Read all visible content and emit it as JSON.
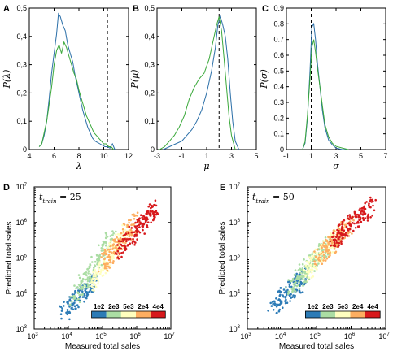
{
  "chart_data": [
    {
      "panel": "A",
      "type": "line",
      "xlabel": "λ",
      "ylabel": "P(λ)",
      "xlim": [
        4,
        12
      ],
      "ylim": [
        0,
        0.5
      ],
      "xticks": [
        "4",
        "6",
        "8",
        "10",
        "12"
      ],
      "yticks": [
        "0",
        "0,1",
        "0,2",
        "0,3",
        "0,4",
        "0,5"
      ],
      "vline": 10.3,
      "colors": {
        "blue": "#2b6fa8",
        "green": "#3aa83a"
      },
      "series": [
        {
          "color": "blue",
          "x": [
            4.8,
            5.0,
            5.2,
            5.4,
            5.6,
            5.8,
            6.0,
            6.2,
            6.35,
            6.5,
            6.7,
            6.9,
            7.1,
            7.3,
            7.5,
            7.7,
            7.9,
            8.1,
            8.3,
            8.5,
            8.7,
            8.9,
            9.1,
            9.3,
            9.5,
            9.7,
            9.9,
            10.1,
            10.3,
            10.5,
            10.7,
            10.9
          ],
          "y": [
            0.01,
            0.02,
            0.05,
            0.1,
            0.18,
            0.27,
            0.34,
            0.41,
            0.48,
            0.47,
            0.44,
            0.42,
            0.37,
            0.34,
            0.31,
            0.26,
            0.22,
            0.18,
            0.14,
            0.11,
            0.08,
            0.06,
            0.04,
            0.03,
            0.025,
            0.02,
            0.015,
            0.01,
            0.01,
            0.005,
            0.02,
            0.0
          ]
        },
        {
          "color": "green",
          "x": [
            4.8,
            5.0,
            5.2,
            5.4,
            5.6,
            5.8,
            6.0,
            6.2,
            6.4,
            6.6,
            6.8,
            7.0,
            7.2,
            7.4,
            7.6,
            7.8,
            8.0,
            8.2,
            8.4,
            8.6,
            8.8,
            9.0,
            9.2,
            9.4,
            9.6,
            9.8,
            10.0,
            10.2,
            10.4,
            10.6,
            10.8
          ],
          "y": [
            0.01,
            0.02,
            0.06,
            0.1,
            0.16,
            0.22,
            0.3,
            0.35,
            0.37,
            0.34,
            0.38,
            0.36,
            0.33,
            0.3,
            0.27,
            0.25,
            0.21,
            0.18,
            0.15,
            0.12,
            0.1,
            0.08,
            0.06,
            0.05,
            0.04,
            0.03,
            0.02,
            0.02,
            0.01,
            0.01,
            0.0
          ]
        }
      ]
    },
    {
      "panel": "B",
      "type": "line",
      "xlabel": "μ",
      "ylabel": "P(μ)",
      "xlim": [
        -3,
        5
      ],
      "ylim": [
        0,
        0.5
      ],
      "xticks": [
        "-3",
        "-1",
        "1",
        "3",
        "5"
      ],
      "yticks": [
        "0",
        "0,1",
        "0,2",
        "0,3",
        "0,4",
        "0,5"
      ],
      "vline": 2.0,
      "colors": {
        "blue": "#2b6fa8",
        "green": "#3aa83a"
      },
      "series": [
        {
          "color": "blue",
          "x": [
            -2.5,
            -2.0,
            -1.5,
            -1.0,
            -0.6,
            -0.2,
            0.2,
            0.6,
            1.0,
            1.4,
            1.7,
            1.9,
            2.1,
            2.3,
            2.5,
            2.7,
            2.9,
            3.1,
            3.3,
            3.6
          ],
          "y": [
            0.0,
            0.01,
            0.02,
            0.03,
            0.05,
            0.07,
            0.1,
            0.14,
            0.2,
            0.28,
            0.36,
            0.44,
            0.47,
            0.44,
            0.4,
            0.32,
            0.2,
            0.1,
            0.03,
            0.0
          ]
        },
        {
          "color": "green",
          "x": [
            -2.8,
            -2.4,
            -2.0,
            -1.6,
            -1.2,
            -0.8,
            -0.4,
            0.0,
            0.4,
            0.8,
            1.2,
            1.5,
            1.8,
            2.0,
            2.2,
            2.4,
            2.6,
            2.8,
            3.0,
            3.3
          ],
          "y": [
            0.0,
            0.01,
            0.03,
            0.05,
            0.08,
            0.12,
            0.18,
            0.22,
            0.25,
            0.27,
            0.32,
            0.38,
            0.44,
            0.47,
            0.42,
            0.32,
            0.22,
            0.12,
            0.05,
            0.0
          ]
        }
      ]
    },
    {
      "panel": "C",
      "type": "line",
      "xlabel": "σ",
      "ylabel": "P(σ)",
      "xlim": [
        -1,
        7
      ],
      "ylim": [
        0,
        0.9
      ],
      "xticks": [
        "-1",
        "1",
        "3",
        "5",
        "7"
      ],
      "yticks": [
        "0",
        "0.1",
        "0.2",
        "0.3",
        "0.4",
        "0.5",
        "0.6",
        "0.7",
        "0.8",
        "0.9"
      ],
      "vline": 1.0,
      "colors": {
        "blue": "#2b6fa8",
        "green": "#3aa83a"
      },
      "series": [
        {
          "color": "blue",
          "x": [
            0.3,
            0.5,
            0.7,
            0.9,
            1.05,
            1.2,
            1.35,
            1.5,
            1.7,
            1.9,
            2.1,
            2.4,
            2.7,
            3.0,
            3.5,
            4.0
          ],
          "y": [
            0.0,
            0.04,
            0.2,
            0.5,
            0.78,
            0.8,
            0.7,
            0.55,
            0.4,
            0.25,
            0.14,
            0.06,
            0.03,
            0.01,
            0.0,
            0.0
          ]
        },
        {
          "color": "green",
          "x": [
            0.3,
            0.5,
            0.7,
            0.9,
            1.05,
            1.2,
            1.35,
            1.5,
            1.7,
            1.9,
            2.1,
            2.4,
            2.7,
            3.0,
            3.5,
            4.0
          ],
          "y": [
            0.0,
            0.05,
            0.22,
            0.45,
            0.65,
            0.7,
            0.62,
            0.52,
            0.4,
            0.28,
            0.16,
            0.08,
            0.04,
            0.02,
            0.01,
            0.0
          ]
        }
      ]
    },
    {
      "panel": "D",
      "type": "scatter",
      "xlabel": "Measured total sales",
      "ylabel": "Predicted total sales",
      "xscale": "log",
      "yscale": "log",
      "xlim": [
        1000,
        10000000
      ],
      "ylim": [
        1000,
        10000000
      ],
      "annotation_main": "t",
      "annotation_sub": "train",
      "annotation_value": " = 25",
      "colorbar": [
        "1e2",
        "2e3",
        "5e3",
        "2e4",
        "4e4"
      ],
      "colors": [
        "#2c7bb6",
        "#abdda4",
        "#ffffbf",
        "#fdae61",
        "#d7191c"
      ],
      "clusters": [
        {
          "color": 0,
          "x": [
            7000,
            60000
          ],
          "y": [
            2500,
            25000
          ],
          "n": 120
        },
        {
          "color": 1,
          "x": [
            15000,
            200000
          ],
          "y": [
            8000,
            400000
          ],
          "n": 160
        },
        {
          "color": 2,
          "x": [
            50000,
            500000
          ],
          "y": [
            20000,
            600000
          ],
          "n": 140
        },
        {
          "color": 3,
          "x": [
            100000,
            1000000
          ],
          "y": [
            60000,
            1200000
          ],
          "n": 140
        },
        {
          "color": 4,
          "x": [
            300000,
            4000000
          ],
          "y": [
            150000,
            3000000
          ],
          "n": 150
        }
      ]
    },
    {
      "panel": "E",
      "type": "scatter",
      "xlabel": "Measured total sales",
      "ylabel": "Predicted total sales",
      "xscale": "log",
      "yscale": "log",
      "xlim": [
        1000,
        10000000
      ],
      "ylim": [
        1000,
        10000000
      ],
      "annotation_main": "t",
      "annotation_sub": "train",
      "annotation_value": " = 50",
      "colorbar": [
        "1e2",
        "2e3",
        "5e3",
        "2e4",
        "4e4"
      ],
      "colors": [
        "#2c7bb6",
        "#abdda4",
        "#ffffbf",
        "#fdae61",
        "#d7191c"
      ],
      "clusters": [
        {
          "color": 0,
          "x": [
            5000,
            50000
          ],
          "y": [
            4000,
            30000
          ],
          "n": 120
        },
        {
          "color": 1,
          "x": [
            15000,
            200000
          ],
          "y": [
            12000,
            250000
          ],
          "n": 160
        },
        {
          "color": 2,
          "x": [
            50000,
            500000
          ],
          "y": [
            40000,
            500000
          ],
          "n": 140
        },
        {
          "color": 3,
          "x": [
            100000,
            1000000
          ],
          "y": [
            90000,
            900000
          ],
          "n": 140
        },
        {
          "color": 4,
          "x": [
            300000,
            4000000
          ],
          "y": [
            300000,
            3000000
          ],
          "n": 150
        }
      ]
    }
  ]
}
